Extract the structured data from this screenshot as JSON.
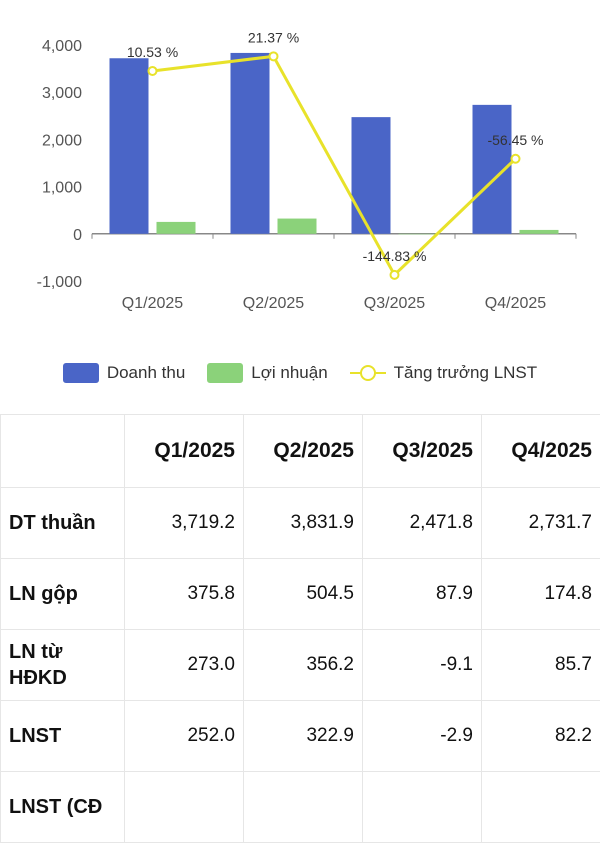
{
  "chart_data": {
    "type": "bar",
    "categories": [
      "Q1/2025",
      "Q2/2025",
      "Q3/2025",
      "Q4/2025"
    ],
    "series": [
      {
        "name": "Doanh thu",
        "kind": "bar",
        "color": "#4a65c7",
        "values": [
          3719.2,
          3831.9,
          2471.8,
          2731.7
        ]
      },
      {
        "name": "Lợi nhuận",
        "kind": "bar",
        "color": "#8bd27a",
        "values": [
          252.0,
          322.9,
          -2.9,
          82.2
        ]
      },
      {
        "name": "Tăng trưởng LNST",
        "kind": "line",
        "color": "#e8e22a",
        "values": [
          10.53,
          21.37,
          -144.83,
          -56.45
        ],
        "labels": [
          "10.53 %",
          "21.37 %",
          "-144.83 %",
          "-56.45 %"
        ],
        "plotted_at": [
          3450,
          3760,
          -870,
          1590
        ]
      }
    ],
    "y_ticks": [
      "4,000",
      "3,000",
      "2,000",
      "1,000",
      "0",
      "-1,000"
    ],
    "ylim": [
      -1000,
      4000
    ],
    "grid": false,
    "legend": "bottom"
  },
  "legend": [
    {
      "label": "Doanh thu",
      "color": "#4a65c7"
    },
    {
      "label": "Lợi nhuận",
      "color": "#8bd27a"
    },
    {
      "label": "Tăng trưởng LNST",
      "color": "#e8e22a"
    }
  ],
  "table": {
    "headers": [
      "",
      "Q1/2025",
      "Q2/2025",
      "Q3/2025",
      "Q4/2025"
    ],
    "rows": [
      {
        "label": "DT thuần",
        "values": [
          "3,719.2",
          "3,831.9",
          "2,471.8",
          "2,731.7"
        ]
      },
      {
        "label": "LN gộp",
        "values": [
          "375.8",
          "504.5",
          "87.9",
          "174.8"
        ]
      },
      {
        "label": "LN từ HĐKD",
        "values": [
          "273.0",
          "356.2",
          "-9.1",
          "85.7"
        ]
      },
      {
        "label": "LNST",
        "values": [
          "252.0",
          "322.9",
          "-2.9",
          "82.2"
        ]
      },
      {
        "label": "LNST (CĐ",
        "values": [
          "",
          "",
          "",
          ""
        ]
      }
    ]
  }
}
